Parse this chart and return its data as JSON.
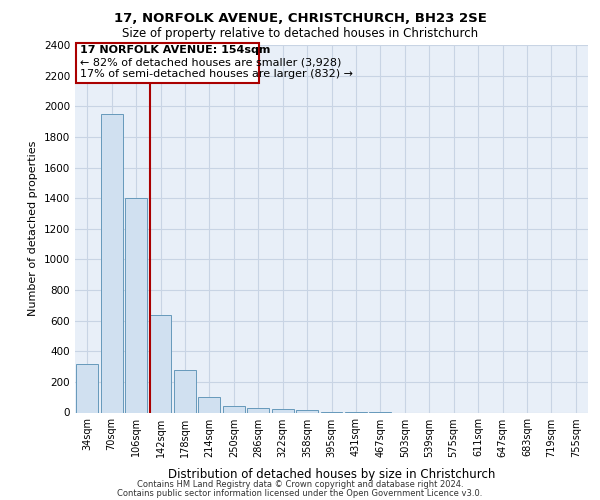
{
  "title1": "17, NORFOLK AVENUE, CHRISTCHURCH, BH23 2SE",
  "title2": "Size of property relative to detached houses in Christchurch",
  "xlabel": "Distribution of detached houses by size in Christchurch",
  "ylabel": "Number of detached properties",
  "categories": [
    "34sqm",
    "70sqm",
    "106sqm",
    "142sqm",
    "178sqm",
    "214sqm",
    "250sqm",
    "286sqm",
    "322sqm",
    "358sqm",
    "395sqm",
    "431sqm",
    "467sqm",
    "503sqm",
    "539sqm",
    "575sqm",
    "611sqm",
    "647sqm",
    "683sqm",
    "719sqm",
    "755sqm"
  ],
  "values": [
    320,
    1950,
    1400,
    640,
    275,
    100,
    45,
    30,
    20,
    15,
    5,
    2,
    1,
    0,
    0,
    0,
    0,
    0,
    0,
    0,
    0
  ],
  "bar_color": "#d0e0f0",
  "bar_edge_color": "#6699bb",
  "red_line_x": 2.55,
  "annotation_line1": "17 NORFOLK AVENUE: 154sqm",
  "annotation_line2": "← 82% of detached houses are smaller (3,928)",
  "annotation_line3": "17% of semi-detached houses are larger (832) →",
  "annotation_box_color": "#ffffff",
  "annotation_box_edge": "#aa0000",
  "red_line_color": "#aa0000",
  "ylim": [
    0,
    2400
  ],
  "yticks": [
    0,
    200,
    400,
    600,
    800,
    1000,
    1200,
    1400,
    1600,
    1800,
    2000,
    2200,
    2400
  ],
  "grid_color": "#c8d4e4",
  "bg_color": "#e8eff8",
  "footer1": "Contains HM Land Registry data © Crown copyright and database right 2024.",
  "footer2": "Contains public sector information licensed under the Open Government Licence v3.0."
}
